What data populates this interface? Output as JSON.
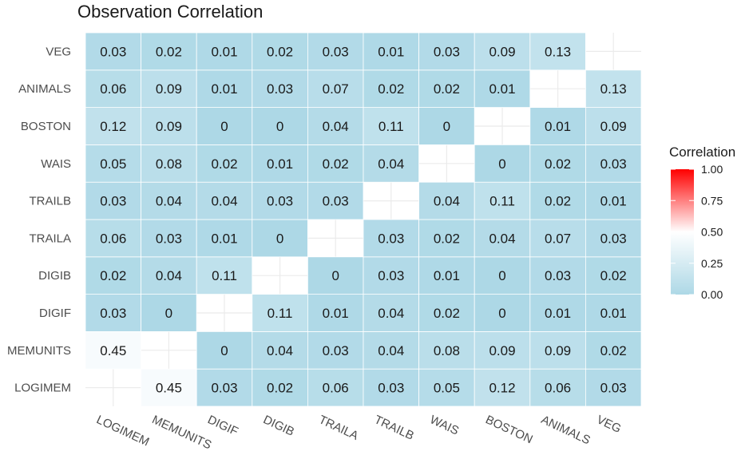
{
  "chart_data": {
    "type": "heatmap",
    "title": "Observation Correlation",
    "x_categories": [
      "LOGIMEM",
      "MEMUNITS",
      "DIGIF",
      "DIGIB",
      "TRAILA",
      "TRAILB",
      "WAIS",
      "BOSTON",
      "ANIMALS",
      "VEG"
    ],
    "y_categories": [
      "LOGIMEM",
      "MEMUNITS",
      "DIGIF",
      "DIGIB",
      "TRAILA",
      "TRAILB",
      "WAIS",
      "BOSTON",
      "ANIMALS",
      "VEG"
    ],
    "values": [
      [
        null,
        0.45,
        0.03,
        0.02,
        0.06,
        0.03,
        0.05,
        0.12,
        0.06,
        0.03
      ],
      [
        0.45,
        null,
        0,
        0.04,
        0.03,
        0.04,
        0.08,
        0.09,
        0.09,
        0.02
      ],
      [
        0.03,
        0,
        null,
        0.11,
        0.01,
        0.04,
        0.02,
        0,
        0.01,
        0.01
      ],
      [
        0.02,
        0.04,
        0.11,
        null,
        0,
        0.03,
        0.01,
        0,
        0.03,
        0.02
      ],
      [
        0.06,
        0.03,
        0.01,
        0,
        null,
        0.03,
        0.02,
        0.04,
        0.07,
        0.03
      ],
      [
        0.03,
        0.04,
        0.04,
        0.03,
        0.03,
        null,
        0.04,
        0.11,
        0.02,
        0.01
      ],
      [
        0.05,
        0.08,
        0.02,
        0.01,
        0.02,
        0.04,
        null,
        0,
        0.02,
        0.03
      ],
      [
        0.12,
        0.09,
        0,
        0,
        0.04,
        0.11,
        0,
        null,
        0.01,
        0.09
      ],
      [
        0.06,
        0.09,
        0.01,
        0.03,
        0.07,
        0.02,
        0.02,
        0.01,
        null,
        0.13
      ],
      [
        0.03,
        0.02,
        0.01,
        0.02,
        0.03,
        0.01,
        0.03,
        0.09,
        0.13,
        null
      ]
    ],
    "legend": {
      "title": "Correlation",
      "ticks": [
        "0.00",
        "0.25",
        "0.50",
        "0.75",
        "1.00"
      ],
      "range": [
        0,
        1
      ],
      "low_color": "#add8e6",
      "mid_color": "#ffffff",
      "high_color": "#ff0000"
    }
  }
}
